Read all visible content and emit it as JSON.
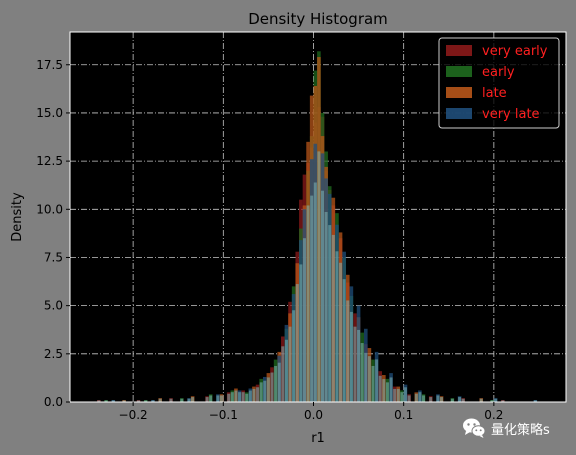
{
  "chart_data": {
    "type": "bar",
    "title": "Density Histogram",
    "xlabel": "r1",
    "ylabel": "Density",
    "xlim": [
      -0.27,
      0.28
    ],
    "ylim": [
      0,
      19.2
    ],
    "xticks": [
      -0.2,
      -0.1,
      0.0,
      0.1,
      0.2
    ],
    "xtick_labels": [
      "−0.2",
      "−0.1",
      "0.0",
      "0.1",
      "0.2"
    ],
    "yticks": [
      0,
      2.5,
      5,
      7.5,
      10,
      12.5,
      15,
      17.5
    ],
    "ytick_labels": [
      "0.0",
      "2.5",
      "5.0",
      "7.5",
      "10.0",
      "12.5",
      "15.0",
      "17.5"
    ],
    "grid": true,
    "legend_position": "top-right",
    "bin_width": 0.004,
    "series": [
      {
        "name": "very early",
        "color": "#8b1a1a",
        "bins": [
          {
            "x": -0.24,
            "y": 0.1
          },
          {
            "x": -0.196,
            "y": 0.1
          },
          {
            "x": -0.16,
            "y": 0.2
          },
          {
            "x": -0.12,
            "y": 0.3
          },
          {
            "x": -0.096,
            "y": 0.5
          },
          {
            "x": -0.08,
            "y": 0.6
          },
          {
            "x": -0.064,
            "y": 0.9
          },
          {
            "x": -0.048,
            "y": 1.8
          },
          {
            "x": -0.036,
            "y": 3.4
          },
          {
            "x": -0.028,
            "y": 5.2
          },
          {
            "x": -0.02,
            "y": 7.8
          },
          {
            "x": -0.016,
            "y": 10.5
          },
          {
            "x": -0.012,
            "y": 11.8
          },
          {
            "x": -0.008,
            "y": 12.4
          },
          {
            "x": -0.004,
            "y": 13.2
          },
          {
            "x": 0.0,
            "y": 14.5
          },
          {
            "x": 0.004,
            "y": 15.3
          },
          {
            "x": 0.008,
            "y": 14.8
          },
          {
            "x": 0.012,
            "y": 12.0
          },
          {
            "x": 0.016,
            "y": 11.0
          },
          {
            "x": 0.02,
            "y": 10.2
          },
          {
            "x": 0.028,
            "y": 8.5
          },
          {
            "x": 0.036,
            "y": 6.2
          },
          {
            "x": 0.044,
            "y": 4.6
          },
          {
            "x": 0.056,
            "y": 3.0
          },
          {
            "x": 0.072,
            "y": 1.6
          },
          {
            "x": 0.088,
            "y": 0.8
          },
          {
            "x": 0.104,
            "y": 0.4
          },
          {
            "x": 0.128,
            "y": 0.3
          },
          {
            "x": 0.164,
            "y": 0.2
          },
          {
            "x": 0.208,
            "y": 0.1
          }
        ]
      },
      {
        "name": "early",
        "color": "#1f6b1f",
        "bins": [
          {
            "x": -0.232,
            "y": 0.1
          },
          {
            "x": -0.188,
            "y": 0.1
          },
          {
            "x": -0.148,
            "y": 0.2
          },
          {
            "x": -0.116,
            "y": 0.4
          },
          {
            "x": -0.092,
            "y": 0.6
          },
          {
            "x": -0.076,
            "y": 0.5
          },
          {
            "x": -0.06,
            "y": 1.2
          },
          {
            "x": -0.044,
            "y": 2.2
          },
          {
            "x": -0.032,
            "y": 3.8
          },
          {
            "x": -0.024,
            "y": 6.0
          },
          {
            "x": -0.016,
            "y": 9.0
          },
          {
            "x": -0.008,
            "y": 12.0
          },
          {
            "x": -0.004,
            "y": 13.8
          },
          {
            "x": 0.0,
            "y": 17.2
          },
          {
            "x": 0.004,
            "y": 18.2
          },
          {
            "x": 0.008,
            "y": 15.0
          },
          {
            "x": 0.012,
            "y": 13.0
          },
          {
            "x": 0.016,
            "y": 11.2
          },
          {
            "x": 0.024,
            "y": 9.8
          },
          {
            "x": 0.032,
            "y": 7.5
          },
          {
            "x": 0.04,
            "y": 5.5
          },
          {
            "x": 0.052,
            "y": 3.6
          },
          {
            "x": 0.064,
            "y": 2.2
          },
          {
            "x": 0.08,
            "y": 1.2
          },
          {
            "x": 0.096,
            "y": 0.6
          },
          {
            "x": 0.12,
            "y": 0.4
          },
          {
            "x": 0.152,
            "y": 0.2
          },
          {
            "x": 0.196,
            "y": 0.1
          }
        ]
      },
      {
        "name": "late",
        "color": "#b8561a",
        "bins": [
          {
            "x": -0.212,
            "y": 0.1
          },
          {
            "x": -0.172,
            "y": 0.2
          },
          {
            "x": -0.136,
            "y": 0.3
          },
          {
            "x": -0.104,
            "y": 0.4
          },
          {
            "x": -0.088,
            "y": 0.7
          },
          {
            "x": -0.068,
            "y": 0.8
          },
          {
            "x": -0.052,
            "y": 1.5
          },
          {
            "x": -0.04,
            "y": 2.6
          },
          {
            "x": -0.028,
            "y": 4.6
          },
          {
            "x": -0.02,
            "y": 7.2
          },
          {
            "x": -0.012,
            "y": 10.2
          },
          {
            "x": -0.008,
            "y": 13.5
          },
          {
            "x": -0.004,
            "y": 15.9
          },
          {
            "x": 0.0,
            "y": 16.4
          },
          {
            "x": 0.004,
            "y": 17.9
          },
          {
            "x": 0.008,
            "y": 13.8
          },
          {
            "x": 0.012,
            "y": 12.2
          },
          {
            "x": 0.02,
            "y": 10.6
          },
          {
            "x": 0.028,
            "y": 8.8
          },
          {
            "x": 0.036,
            "y": 6.6
          },
          {
            "x": 0.048,
            "y": 4.4
          },
          {
            "x": 0.06,
            "y": 2.8
          },
          {
            "x": 0.076,
            "y": 1.4
          },
          {
            "x": 0.092,
            "y": 0.8
          },
          {
            "x": 0.112,
            "y": 0.5
          },
          {
            "x": 0.14,
            "y": 0.3
          },
          {
            "x": 0.184,
            "y": 0.2
          }
        ]
      },
      {
        "name": "very late",
        "color": "#1f4e7a",
        "bins": [
          {
            "x": -0.224,
            "y": 0.1
          },
          {
            "x": -0.18,
            "y": 0.1
          },
          {
            "x": -0.14,
            "y": 0.2
          },
          {
            "x": -0.108,
            "y": 0.4
          },
          {
            "x": -0.084,
            "y": 0.6
          },
          {
            "x": -0.072,
            "y": 0.7
          },
          {
            "x": -0.056,
            "y": 1.3
          },
          {
            "x": -0.04,
            "y": 2.4
          },
          {
            "x": -0.032,
            "y": 4.0
          },
          {
            "x": -0.024,
            "y": 5.6
          },
          {
            "x": -0.016,
            "y": 8.4
          },
          {
            "x": -0.012,
            "y": 10.0
          },
          {
            "x": -0.004,
            "y": 12.6
          },
          {
            "x": 0.0,
            "y": 13.4
          },
          {
            "x": 0.008,
            "y": 12.9
          },
          {
            "x": 0.012,
            "y": 11.6
          },
          {
            "x": 0.016,
            "y": 10.8
          },
          {
            "x": 0.024,
            "y": 9.2
          },
          {
            "x": 0.032,
            "y": 7.8
          },
          {
            "x": 0.04,
            "y": 6.0
          },
          {
            "x": 0.048,
            "y": 5.0
          },
          {
            "x": 0.056,
            "y": 3.8
          },
          {
            "x": 0.068,
            "y": 2.6
          },
          {
            "x": 0.084,
            "y": 1.5
          },
          {
            "x": 0.1,
            "y": 0.9
          },
          {
            "x": 0.116,
            "y": 0.6
          },
          {
            "x": 0.136,
            "y": 0.4
          },
          {
            "x": 0.16,
            "y": 0.3
          },
          {
            "x": 0.2,
            "y": 0.2
          },
          {
            "x": 0.244,
            "y": 0.1
          }
        ]
      }
    ],
    "overlap_color": "#7fb6b6"
  },
  "watermark": {
    "text": "量化策略s",
    "icon": "wechat-icon"
  }
}
